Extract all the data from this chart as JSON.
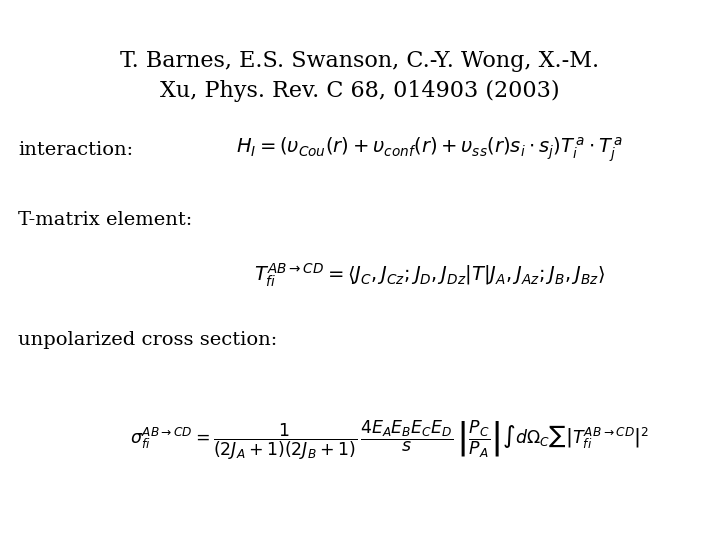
{
  "title_line1": "T. Barnes, E.S. Swanson, C.-Y. Wong, X.-M.",
  "title_line2": "Xu, Phys. Rev. C 68, 014903 (2003)",
  "label_interaction": "interaction:",
  "label_tmatrix": "T-matrix element:",
  "label_cross": "unpolarized cross section:",
  "bg_color": "#ffffff",
  "text_color": "#000000",
  "title_fontsize": 16,
  "label_fontsize": 14,
  "eq_fontsize": 14,
  "cross_fontsize": 12.5
}
